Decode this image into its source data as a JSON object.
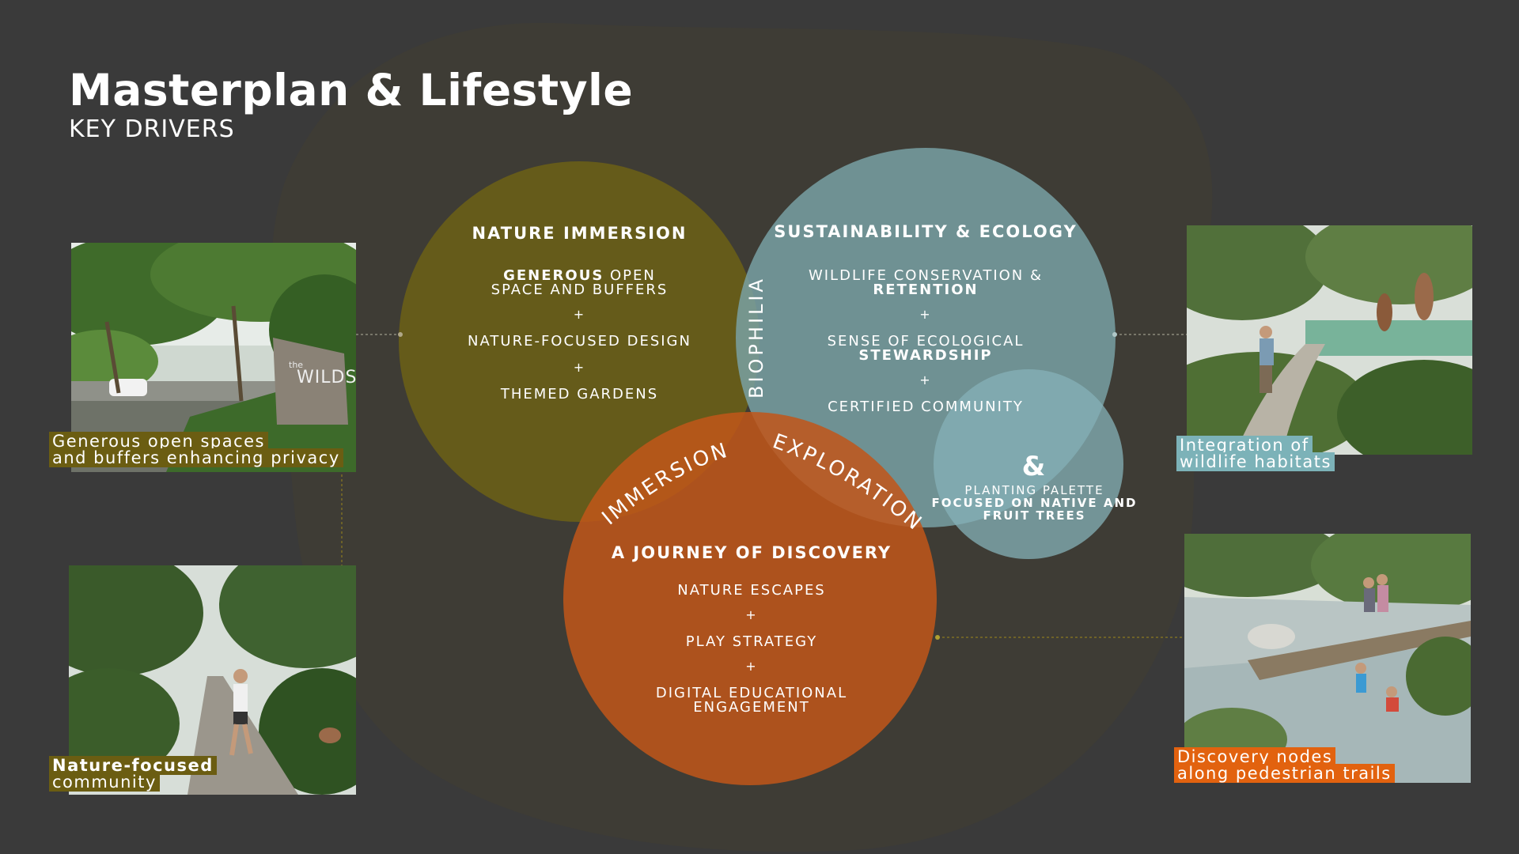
{
  "header": {
    "title": "Masterplan & Lifestyle",
    "subtitle": "KEY DRIVERS"
  },
  "colors": {
    "background": "#3a3a3a",
    "blob": "#3e3c35",
    "olive": "#665c1a",
    "teal": "#7aa3a8",
    "orange": "#c0561a",
    "small_teal": "#85b2b8",
    "caption_olive": "#6b5d12",
    "caption_teal": "#7cb2b8",
    "caption_orange": "#e2620f"
  },
  "circles": {
    "nature": {
      "heading": "NATURE IMMERSION",
      "line1_bold": "GENEROUS",
      "line1_rest": " OPEN",
      "line2": "SPACE AND BUFFERS",
      "plus1": "+",
      "line3": "NATURE-FOCUSED DESIGN",
      "plus2": "+",
      "line4": "THEMED GARDENS"
    },
    "sustain": {
      "heading": "SUSTAINABILITY & ECOLOGY",
      "line1": "WILDLIFE CONSERVATION &",
      "line1_bold": "RETENTION",
      "plus1": "+",
      "line2": "SENSE OF ECOLOGICAL",
      "line2_bold": "STEWARDSHIP",
      "plus2": "+",
      "line3": "CERTIFIED COMMUNITY"
    },
    "discovery": {
      "heading": "A JOURNEY OF DISCOVERY",
      "line1": "NATURE ESCAPES",
      "plus1": "+",
      "line2": "PLAY STRATEGY",
      "plus2": "+",
      "line3": "DIGITAL EDUCATIONAL",
      "line3b": "ENGAGEMENT"
    },
    "planting": {
      "amp": "&",
      "line1": "PLANTING PALETTE",
      "line2_bold": "FOCUSED ON NATIVE AND",
      "line3_bold": "FRUIT TREES"
    }
  },
  "overlaps": {
    "biophilia": "BIOPHILIA",
    "immersion": "IMMERSION",
    "exploration": "EXPLORATION"
  },
  "photos": {
    "entrance": {
      "sign_small": "the",
      "sign": "WILDS",
      "caption1": "Generous open spaces",
      "caption2": "and buffers enhancing privacy"
    },
    "jogger": {
      "caption1": "Nature-focused",
      "caption2": "community"
    },
    "wildlife": {
      "caption1": "Integration of",
      "caption2": "wildlife habitats"
    },
    "stream": {
      "caption1": "Discovery nodes",
      "caption2": "along pedestrian trails"
    }
  }
}
